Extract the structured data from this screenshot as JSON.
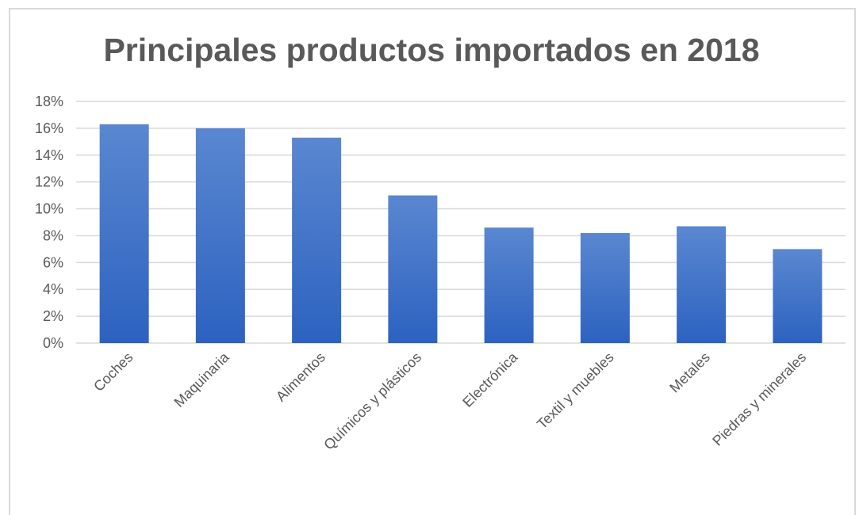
{
  "chart_data": {
    "type": "bar",
    "title": "Principales productos importados en 2018",
    "xlabel": "",
    "ylabel": "",
    "categories": [
      "Coches",
      "Maquinaria",
      "Alimentos",
      "Químicos y plásticos",
      "Electrónica",
      "Textil y muebles",
      "Metales",
      "Piedras y minerales"
    ],
    "values": [
      16.3,
      16.0,
      15.3,
      11.0,
      8.6,
      8.2,
      8.7,
      7.0
    ],
    "ylim": [
      0,
      18
    ],
    "y_ticks": [
      "0%",
      "2%",
      "4%",
      "6%",
      "8%",
      "10%",
      "12%",
      "14%",
      "16%",
      "18%"
    ],
    "grid": true,
    "bar_color_top": "#5a87d0",
    "bar_color_bottom": "#2c62c0",
    "grid_color": "#d9d9d9",
    "text_color": "#595959"
  }
}
